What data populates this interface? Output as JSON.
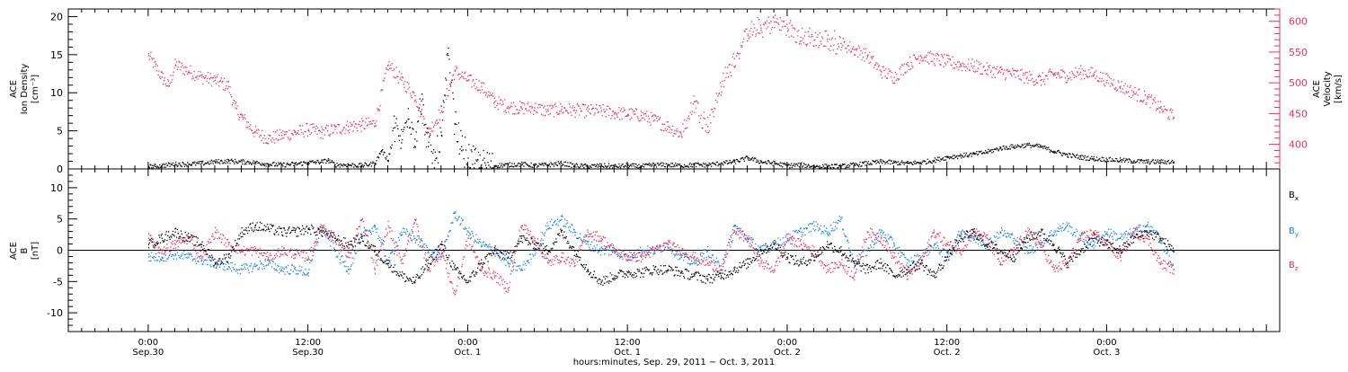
{
  "chart_data": [
    {
      "type": "scatter",
      "panel": "top",
      "ylabel": [
        "ACE",
        "Ion Density",
        "[cm⁻³]"
      ],
      "y2label": [
        "ACE",
        "Velocity",
        "[km/s]"
      ],
      "ylim": [
        0,
        21
      ],
      "y2lim": [
        360,
        620
      ],
      "yticks": [
        0,
        5,
        10,
        15,
        20
      ],
      "y2ticks": [
        400,
        450,
        500,
        550,
        600
      ],
      "colors": {
        "density": "#000000",
        "velocity": "#e8305a"
      },
      "series": [
        {
          "key": "density",
          "x": [
            0,
            0.5,
            1,
            2,
            3,
            4,
            5,
            6,
            7,
            8,
            9,
            10,
            11,
            12,
            13,
            13.5,
            14,
            15,
            16,
            17,
            17.5,
            18,
            18.5,
            19,
            19.5,
            20,
            20.5,
            21,
            21.5,
            22,
            22.5,
            23,
            23.5,
            24,
            24.5,
            25,
            26,
            27,
            28,
            29,
            30,
            31,
            32,
            33,
            34,
            35,
            36,
            37,
            38,
            39,
            40,
            41,
            42,
            43,
            44,
            45,
            46,
            47,
            48,
            49,
            50,
            51,
            52,
            53,
            54,
            55,
            56,
            57,
            58,
            59,
            60,
            61,
            62,
            63,
            64,
            65,
            66,
            67,
            68,
            69,
            70,
            71,
            72,
            73,
            74,
            75,
            76,
            77
          ],
          "values": [
            0.4,
            0.4,
            0.5,
            0.7,
            0.7,
            0.8,
            1.0,
            1.1,
            1.0,
            0.9,
            0.7,
            0.6,
            0.7,
            0.9,
            1.0,
            1.2,
            0.6,
            0.6,
            0.5,
            0.8,
            2.5,
            1.2,
            5.5,
            3.5,
            8.0,
            4.0,
            9.0,
            3.0,
            1.2,
            4.5,
            15.0,
            6.0,
            3.0,
            1.5,
            0.8,
            0.6,
            0.5,
            0.6,
            0.7,
            0.5,
            0.6,
            0.8,
            0.5,
            0.4,
            0.5,
            0.4,
            0.5,
            0.4,
            0.6,
            0.6,
            0.5,
            0.6,
            0.6,
            0.8,
            1.0,
            1.5,
            1.0,
            0.8,
            0.5,
            0.6,
            0.4,
            0.4,
            0.4,
            0.6,
            0.8,
            1.0,
            0.9,
            0.8,
            0.9,
            1.2,
            1.6,
            1.8,
            2.0,
            2.3,
            2.8,
            3.0,
            3.2,
            3.0,
            2.4,
            1.9,
            1.6,
            1.4,
            1.3,
            1.2,
            1.1,
            1.0,
            1.0,
            1.0
          ]
        },
        {
          "key": "velocity",
          "x": [
            0,
            0.5,
            1,
            1.5,
            2,
            3,
            4,
            5,
            6,
            6.5,
            7,
            8,
            9,
            10,
            11,
            12,
            13,
            14,
            15,
            16,
            17,
            18,
            19,
            20,
            21,
            22,
            23,
            24,
            25,
            26,
            27,
            28,
            29,
            30,
            31,
            32,
            33,
            34,
            35,
            36,
            37,
            38,
            39,
            40,
            41,
            42,
            43,
            44,
            45,
            46,
            47,
            48,
            49,
            50,
            51,
            52,
            53,
            54,
            55,
            56,
            57,
            58,
            59,
            60,
            61,
            62,
            63,
            64,
            65,
            66,
            67,
            68,
            69,
            70,
            71,
            72,
            73,
            74,
            75,
            76,
            77
          ],
          "values": [
            545,
            528,
            510,
            495,
            530,
            520,
            510,
            505,
            495,
            460,
            445,
            420,
            410,
            415,
            420,
            425,
            420,
            425,
            430,
            432,
            435,
            530,
            505,
            480,
            420,
            455,
            520,
            505,
            495,
            470,
            462,
            460,
            460,
            455,
            458,
            456,
            455,
            455,
            452,
            450,
            448,
            440,
            430,
            418,
            470,
            430,
            495,
            540,
            580,
            590,
            600,
            590,
            575,
            570,
            568,
            565,
            555,
            545,
            520,
            510,
            530,
            545,
            540,
            535,
            530,
            528,
            522,
            518,
            515,
            510,
            505,
            515,
            512,
            518,
            515,
            505,
            495,
            485,
            475,
            460,
            445
          ]
        }
      ]
    },
    {
      "type": "scatter",
      "panel": "bottom",
      "ylabel": [
        "ACE",
        "B",
        "[nT]"
      ],
      "ylim": [
        -13,
        13
      ],
      "yticks": [
        -10,
        -5,
        0,
        5,
        10
      ],
      "colors": {
        "Bx": "#000000",
        "By": "#1a82e6",
        "Bz": "#e8305a"
      },
      "legend": {
        "position": "right",
        "entries": [
          "B",
          "B",
          "B"
        ],
        "subscripts": [
          "x",
          "y",
          "z"
        ]
      },
      "series": [
        {
          "key": "Bx",
          "x": [
            0,
            1,
            2,
            3,
            4,
            5,
            6,
            7,
            8,
            9,
            10,
            11,
            12,
            13,
            14,
            15,
            16,
            17,
            18,
            19,
            20,
            21,
            22,
            23,
            24,
            25,
            26,
            27,
            28,
            29,
            30,
            31,
            32,
            33,
            34,
            35,
            36,
            37,
            38,
            39,
            40,
            41,
            42,
            43,
            44,
            45,
            46,
            47,
            48,
            49,
            50,
            51,
            52,
            53,
            54,
            55,
            56,
            57,
            58,
            59,
            60,
            61,
            62,
            63,
            64,
            65,
            66,
            67,
            68,
            69,
            70,
            71,
            72,
            73,
            74,
            75,
            76,
            77
          ],
          "values": [
            1,
            2,
            3,
            2,
            1,
            -2,
            -1,
            3,
            4,
            3.5,
            3,
            3,
            3.5,
            3,
            2,
            1,
            2,
            0,
            -2,
            -4,
            -5,
            -2,
            1,
            -3,
            -5,
            -2,
            0,
            -1,
            2,
            1,
            0,
            3,
            0,
            -3,
            -5,
            -4,
            -3.5,
            -3.5,
            -3,
            -3,
            -3.5,
            -4,
            -4.5,
            -4,
            -3,
            -2,
            0,
            1,
            -1,
            -2,
            -1,
            1,
            0,
            -2,
            -3,
            -2,
            -4,
            -3,
            -2,
            -4,
            -1,
            2,
            3,
            1,
            0,
            -1,
            2,
            3,
            1,
            -2,
            0,
            2,
            1,
            0,
            2,
            3,
            2,
            0
          ]
        },
        {
          "key": "By",
          "x": [
            0,
            1,
            2,
            3,
            4,
            5,
            6,
            7,
            8,
            9,
            10,
            11,
            12,
            13,
            14,
            15,
            16,
            17,
            18,
            19,
            20,
            21,
            22,
            23,
            24,
            25,
            26,
            27,
            28,
            29,
            30,
            31,
            32,
            33,
            34,
            35,
            36,
            37,
            38,
            39,
            40,
            41,
            42,
            43,
            44,
            45,
            46,
            47,
            48,
            49,
            50,
            51,
            52,
            53,
            54,
            55,
            56,
            57,
            58,
            59,
            60,
            61,
            62,
            63,
            64,
            65,
            66,
            67,
            68,
            69,
            70,
            71,
            72,
            73,
            74,
            75,
            76,
            77
          ],
          "values": [
            -1,
            -1,
            -0.5,
            -1,
            -1.5,
            -2,
            -2.5,
            -3,
            -2.5,
            -2,
            -3,
            -3,
            -3.5,
            4,
            0,
            -3,
            2,
            4,
            -2,
            3,
            2,
            0,
            -1,
            6,
            3,
            1,
            0,
            -2,
            -3,
            0,
            4,
            5,
            3,
            1,
            0,
            0,
            -1,
            0,
            0,
            1,
            -1,
            -2,
            0,
            -3,
            4,
            2,
            0,
            1,
            2,
            3,
            4,
            3,
            5,
            -2,
            0,
            3,
            1,
            -2,
            -1,
            1,
            -1,
            3,
            2,
            1,
            3,
            2,
            0,
            1,
            3,
            4,
            2,
            1,
            3,
            2,
            3,
            4,
            2,
            -3
          ]
        },
        {
          "key": "Bz",
          "x": [
            0,
            1,
            2,
            3,
            4,
            5,
            6,
            7,
            8,
            9,
            10,
            11,
            12,
            13,
            14,
            15,
            16,
            17,
            18,
            19,
            20,
            21,
            22,
            23,
            24,
            25,
            26,
            27,
            28,
            29,
            30,
            31,
            32,
            33,
            34,
            35,
            36,
            37,
            38,
            39,
            40,
            41,
            42,
            43,
            44,
            45,
            46,
            47,
            48,
            49,
            50,
            51,
            52,
            53,
            54,
            55,
            56,
            57,
            58,
            59,
            60,
            61,
            62,
            63,
            64,
            65,
            66,
            67,
            68,
            69,
            70,
            71,
            72,
            73,
            74,
            75,
            76,
            77
          ],
          "values": [
            2,
            0,
            1,
            2,
            -1,
            3,
            1,
            0,
            0,
            -1,
            0,
            -0.5,
            -1,
            4,
            2,
            -1,
            5,
            -3,
            4,
            -2,
            5,
            -3,
            0,
            -7,
            2,
            -3,
            -4,
            -6,
            4,
            2,
            -2,
            -1,
            -2,
            3,
            2,
            0,
            -1,
            -1,
            0,
            1,
            0,
            -1,
            -2,
            -3,
            3,
            2,
            -2,
            -3,
            2,
            1,
            0,
            -3,
            -2,
            -4,
            3,
            2,
            -1,
            -4,
            -2,
            3,
            1,
            0,
            3,
            2,
            -2,
            0,
            3,
            1,
            -3,
            -2,
            2,
            3,
            1,
            -1,
            3,
            2,
            -2,
            -3
          ]
        }
      ]
    }
  ],
  "time_axis": {
    "xlim": [
      -6,
      85
    ],
    "ticks": [
      {
        "t": 0,
        "time": "0:00",
        "date": "Sep.30"
      },
      {
        "t": 12,
        "time": "12:00",
        "date": "Sep.30"
      },
      {
        "t": 24,
        "time": "0:00",
        "date": "Oct. 1"
      },
      {
        "t": 36,
        "time": "12:00",
        "date": "Oct. 1"
      },
      {
        "t": 48,
        "time": "0:00",
        "date": "Oct. 2"
      },
      {
        "t": 60,
        "time": "12:00",
        "date": "Oct. 2"
      },
      {
        "t": 72,
        "time": "0:00",
        "date": "Oct. 3"
      }
    ],
    "xlabel": "hours:minutes, Sep. 29, 2011 − Oct.  3, 2011",
    "data_end": 77
  }
}
